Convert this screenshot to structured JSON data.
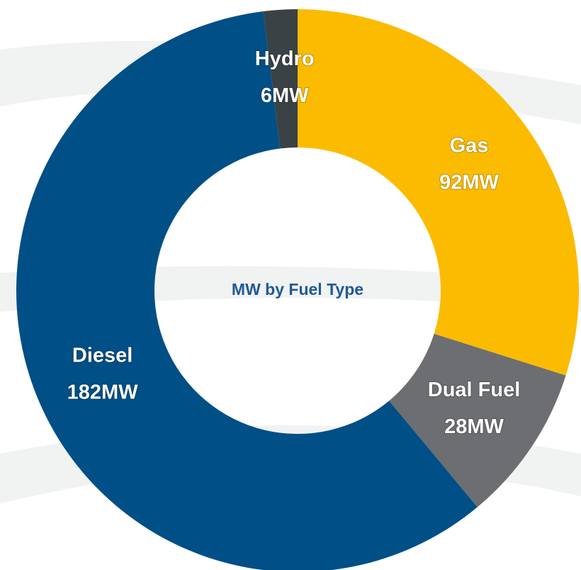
{
  "chart_data": {
    "type": "donut",
    "title": "MW by Fuel Type",
    "categories": [
      "Gas",
      "Dual Fuel",
      "Diesel",
      "Hydro"
    ],
    "values": [
      92,
      28,
      182,
      6
    ],
    "value_labels": [
      "92MW",
      "28MW",
      "182MW",
      "6MW"
    ],
    "colors": [
      "#fbbb00",
      "#6d6e71",
      "#004f86",
      "#3a4245"
    ]
  }
}
